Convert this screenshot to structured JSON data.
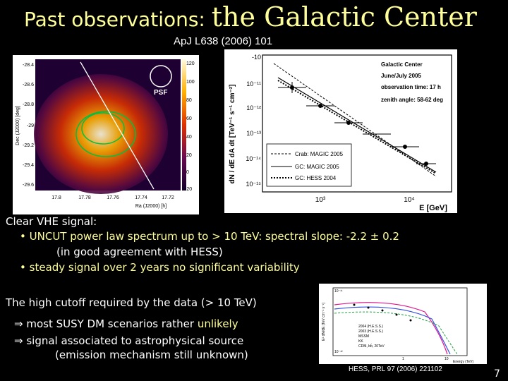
{
  "title": {
    "prefix": "Past observations:",
    "main": "the Galactic Center"
  },
  "reference_top": "ApJ L638 (2006) 101",
  "skymap": {
    "y_label": "Dec (J2000) [deg]",
    "x_label": "Ra (J2000) [h]",
    "y_ticks": [
      "-28.4",
      "-28.6",
      "-28.8",
      "-29",
      "-29.2",
      "-29.4",
      "-29.6"
    ],
    "x_ticks": [
      "17.8",
      "17.78",
      "17.76",
      "17.74",
      "17.72"
    ],
    "psf_label": "PSF",
    "colorbar_ticks": [
      "120",
      "100",
      "80",
      "60",
      "40",
      "20",
      "0",
      "-20"
    ]
  },
  "spectrum": {
    "y_label": "dN / dE dA dt [TeV⁻¹ s⁻¹ cm⁻²]",
    "x_label": "E [GeV]",
    "y_ticks": [
      "-10",
      "10⁻¹¹",
      "10⁻¹²",
      "10⁻¹³",
      "10⁻¹⁴",
      "10⁻¹⁵"
    ],
    "x_ticks": [
      "10³",
      "10⁴"
    ],
    "info": [
      "Galactic Center",
      "June/July 2005",
      "observation time: 17 h",
      "zenith angle: 58-62 deg"
    ],
    "legend": [
      "Crab: MAGIC 2005",
      "GC: MAGIC 2005",
      "GC: HESS 2004"
    ]
  },
  "bullets": {
    "heading": "Clear VHE signal:",
    "item1_a": "UNCUT power law spectrum up to > 10 TeV:",
    "item1_b": "spectral slope: -2.2 ± 0.2",
    "item1_c": "(in good agreement with HESS)",
    "item2_a": "steady signal over 2 years",
    "item2_b": "no significant variability"
  },
  "cutoff": {
    "line": "The high cutoff required by the data (> 10 TeV)",
    "imp1_a": "⇒ most SUSY DM scenarios rather",
    "imp1_b": "unlikely",
    "imp2": "⇒ signal associated to astrophysical source",
    "imp2_b": "(emission mechanism still unknown)"
  },
  "hess_plot": {
    "y_label": "E² dN/dE [TeV cm⁻² s⁻¹]",
    "x_label": "Energy (TeV)",
    "legend": [
      "2004 (H.E.S.S.)",
      "2003 (H.E.S.S.)",
      "MSSM",
      "KK",
      "CDM, bb̄, 20TeV"
    ],
    "x_ticks": [
      "1",
      "10"
    ],
    "y_ticks": [
      "10⁻¹¹",
      "10⁻¹²"
    ]
  },
  "reference_bottom": "HESS, PRL 97 (2006) 221102",
  "slide_number": "7"
}
